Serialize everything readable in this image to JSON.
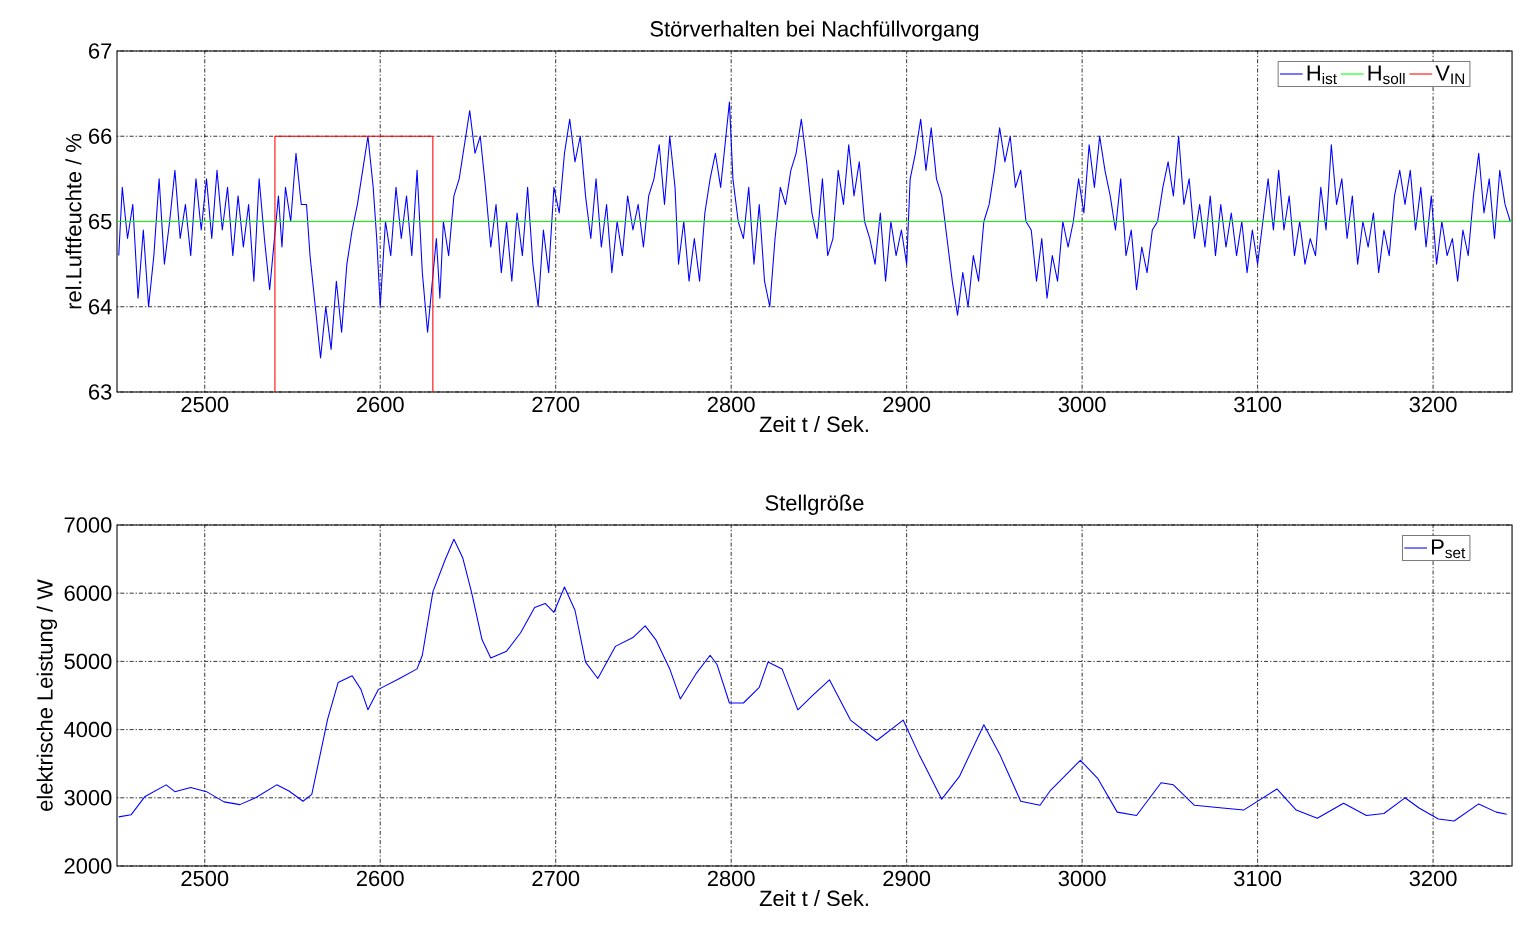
{
  "chart_data": [
    {
      "type": "line",
      "title": "Störverhalten bei Nachfüllvorgang",
      "xlabel": "Zeit t / Sek.",
      "ylabel": "rel.Luftfeuchte / %",
      "xlim": [
        2450,
        3245
      ],
      "ylim": [
        63,
        67
      ],
      "xticks": [
        2500,
        2600,
        2700,
        2800,
        2900,
        3000,
        3100,
        3200
      ],
      "yticks": [
        63,
        64,
        65,
        66,
        67
      ],
      "grid": true,
      "legend": "top right",
      "line_style": "solid",
      "series": [
        {
          "name": "H$_{ist}$",
          "color": "#0000ff",
          "x": [
            2451,
            2453,
            2456,
            2459,
            2462,
            2465,
            2468,
            2471,
            2474,
            2477,
            2480,
            2483,
            2486,
            2489,
            2492,
            2495,
            2498,
            2501,
            2504,
            2507,
            2510,
            2513,
            2516,
            2519,
            2522,
            2525,
            2528,
            2531,
            2534,
            2537,
            2542,
            2544,
            2546,
            2549,
            2552,
            2555,
            2558,
            2560,
            2563,
            2566,
            2569,
            2572,
            2575,
            2578,
            2581,
            2584,
            2587,
            2590,
            2593,
            2596,
            2598,
            2600,
            2603,
            2606,
            2609,
            2612,
            2615,
            2618,
            2621,
            2624,
            2627,
            2632,
            2634,
            2636,
            2639,
            2642,
            2645,
            2648,
            2651,
            2654,
            2657,
            2660,
            2663,
            2666,
            2669,
            2672,
            2675,
            2678,
            2681,
            2684,
            2687,
            2690,
            2693,
            2696,
            2699,
            2702,
            2705,
            2708,
            2711,
            2714,
            2717,
            2720,
            2723,
            2726,
            2729,
            2732,
            2735,
            2738,
            2741,
            2744,
            2747,
            2750,
            2753,
            2756,
            2759,
            2762,
            2765,
            2768,
            2770,
            2773,
            2776,
            2779,
            2782,
            2785,
            2788,
            2791,
            2794,
            2797,
            2799,
            2801,
            2804,
            2807,
            2810,
            2813,
            2816,
            2819,
            2822,
            2825,
            2828,
            2831,
            2834,
            2837,
            2840,
            2843,
            2846,
            2849,
            2852,
            2855,
            2858,
            2861,
            2864,
            2867,
            2870,
            2873,
            2876,
            2879,
            2882,
            2885,
            2888,
            2891,
            2894,
            2897,
            2900,
            2902,
            2905,
            2908,
            2911,
            2914,
            2917,
            2920,
            2923,
            2926,
            2929,
            2932,
            2935,
            2938,
            2941,
            2944,
            2947,
            2950,
            2953,
            2956,
            2959,
            2962,
            2965,
            2968,
            2971,
            2974,
            2977,
            2980,
            2983,
            2986,
            2989,
            2992,
            2995,
            2998,
            3001,
            3004,
            3007,
            3010,
            3013,
            3016,
            3019,
            3022,
            3025,
            3028,
            3031,
            3034,
            3037,
            3040,
            3043,
            3046,
            3049,
            3052,
            3055,
            3058,
            3061,
            3064,
            3067,
            3070,
            3073,
            3076,
            3079,
            3082,
            3085,
            3088,
            3091,
            3094,
            3097,
            3100,
            3103,
            3106,
            3109,
            3112,
            3115,
            3118,
            3121,
            3124,
            3127,
            3130,
            3133,
            3136,
            3139,
            3142,
            3145,
            3148,
            3151,
            3154,
            3157,
            3160,
            3163,
            3166,
            3169,
            3172,
            3175,
            3178,
            3181,
            3184,
            3187,
            3190,
            3193,
            3196,
            3199,
            3202,
            3205,
            3208,
            3211,
            3214,
            3217,
            3220,
            3223,
            3226,
            3229,
            3232,
            3235,
            3238,
            3241,
            3244
          ],
          "values": [
            64.6,
            65.4,
            64.8,
            65.2,
            64.1,
            64.9,
            64.0,
            64.6,
            65.5,
            64.5,
            65.0,
            65.6,
            64.8,
            65.2,
            64.6,
            65.5,
            64.9,
            65.5,
            64.8,
            65.6,
            64.9,
            65.4,
            64.6,
            65.3,
            64.7,
            65.2,
            64.3,
            65.5,
            64.8,
            64.2,
            65.3,
            64.7,
            65.4,
            65.0,
            65.8,
            65.2,
            65.2,
            64.6,
            64.0,
            63.4,
            64.0,
            63.5,
            64.3,
            63.7,
            64.5,
            64.9,
            65.2,
            65.6,
            66.0,
            65.4,
            64.8,
            64.0,
            65.0,
            64.6,
            65.4,
            64.8,
            65.3,
            64.6,
            65.6,
            64.4,
            63.7,
            64.8,
            64.1,
            65.0,
            64.6,
            65.3,
            65.5,
            65.9,
            66.3,
            65.8,
            66.0,
            65.4,
            64.7,
            65.2,
            64.4,
            65.0,
            64.3,
            65.1,
            64.6,
            65.4,
            64.5,
            64.0,
            64.9,
            64.4,
            65.4,
            65.1,
            65.8,
            66.2,
            65.7,
            66.0,
            65.3,
            64.8,
            65.5,
            64.7,
            65.2,
            64.4,
            65.0,
            64.6,
            65.3,
            64.9,
            65.2,
            64.7,
            65.3,
            65.5,
            65.9,
            65.2,
            66.0,
            65.4,
            64.5,
            65.0,
            64.3,
            64.8,
            64.3,
            65.1,
            65.5,
            65.8,
            65.4,
            66.0,
            66.4,
            65.5,
            65.0,
            64.8,
            65.4,
            64.5,
            65.2,
            64.3,
            64.0,
            64.8,
            65.4,
            65.2,
            65.6,
            65.8,
            66.2,
            65.7,
            65.1,
            64.8,
            65.5,
            64.6,
            64.8,
            65.6,
            65.2,
            65.9,
            65.3,
            65.7,
            65.0,
            64.8,
            64.5,
            65.1,
            64.3,
            65.0,
            64.6,
            64.9,
            64.5,
            65.5,
            65.8,
            66.2,
            65.6,
            66.1,
            65.5,
            65.3,
            64.8,
            64.3,
            63.9,
            64.4,
            64.0,
            64.6,
            64.3,
            65.0,
            65.2,
            65.6,
            66.1,
            65.7,
            66.0,
            65.4,
            65.6,
            65.0,
            64.9,
            64.3,
            64.8,
            64.1,
            64.6,
            64.3,
            65.0,
            64.7,
            65.0,
            65.5,
            65.1,
            65.9,
            65.4,
            66.0,
            65.6,
            65.3,
            64.9,
            65.5,
            64.6,
            64.9,
            64.2,
            64.7,
            64.4,
            64.9,
            65.0,
            65.4,
            65.7,
            65.3,
            66.0,
            65.2,
            65.5,
            64.8,
            65.2,
            64.7,
            65.3,
            64.6,
            65.2,
            64.7,
            65.1,
            64.6,
            65.0,
            64.4,
            64.9,
            64.5,
            65.0,
            65.5,
            64.9,
            65.6,
            64.9,
            65.3,
            64.6,
            65.0,
            64.5,
            64.8,
            64.6,
            65.4,
            64.9,
            65.9,
            65.2,
            65.5,
            64.8,
            65.3,
            64.5,
            65.0,
            64.7,
            65.1,
            64.4,
            64.9,
            64.6,
            65.3,
            65.6,
            65.2,
            65.6,
            64.9,
            65.4,
            64.7,
            65.3,
            64.5,
            65.0,
            64.6,
            64.8,
            64.3,
            64.9,
            64.6,
            65.3,
            65.8,
            65.1,
            65.5,
            64.8,
            65.6,
            65.2,
            65.0
          ]
        },
        {
          "name": "H$_{soll}$",
          "color": "#00ff00",
          "x": [
            2450,
            3245
          ],
          "values": [
            65,
            65
          ]
        },
        {
          "name": "V$_{IN}$",
          "color": "#ff0000",
          "x": [
            2540,
            2540,
            2630,
            2630
          ],
          "values": [
            63,
            66,
            66,
            63
          ]
        }
      ]
    },
    {
      "type": "line",
      "title": "Stellgröße",
      "xlabel": "Zeit t / Sek.",
      "ylabel": "elektrische Leistung / W",
      "xlim": [
        2450,
        3245
      ],
      "ylim": [
        2000,
        7000
      ],
      "xticks": [
        2500,
        2600,
        2700,
        2800,
        2900,
        3000,
        3100,
        3200
      ],
      "yticks": [
        2000,
        3000,
        4000,
        5000,
        6000,
        7000
      ],
      "grid": true,
      "legend": "top right",
      "line_style": "solid",
      "series": [
        {
          "name": "P$_{set}$",
          "color": "#0000ff",
          "x": [
            2451,
            2458,
            2466,
            2478,
            2483,
            2492,
            2501,
            2511,
            2520,
            2529,
            2541,
            2548,
            2556,
            2561,
            2570,
            2576,
            2584,
            2589,
            2593,
            2599,
            2611,
            2621,
            2624,
            2630,
            2637,
            2642,
            2647,
            2652,
            2658,
            2663,
            2672,
            2680,
            2688,
            2694,
            2699,
            2705,
            2711,
            2717,
            2724,
            2734,
            2744,
            2751,
            2757,
            2765,
            2771,
            2780,
            2788,
            2792,
            2799,
            2807,
            2816,
            2821,
            2829,
            2838,
            2846,
            2856,
            2868,
            2883,
            2898,
            2907,
            2920,
            2930,
            2944,
            2953,
            2965,
            2976,
            2982,
            2999,
            3009,
            3020,
            3031,
            3045,
            3052,
            3064,
            3080,
            3092,
            3111,
            3122,
            3134,
            3149,
            3162,
            3172,
            3184,
            3192,
            3203,
            3212,
            3226,
            3236,
            3242
          ],
          "values": [
            2720,
            2750,
            3020,
            3190,
            3090,
            3150,
            3090,
            2940,
            2900,
            3000,
            3190,
            3100,
            2950,
            3050,
            4150,
            4690,
            4790,
            4590,
            4290,
            4590,
            4750,
            4890,
            5090,
            6020,
            6490,
            6790,
            6520,
            6020,
            5320,
            5050,
            5150,
            5420,
            5790,
            5850,
            5720,
            6090,
            5750,
            4990,
            4750,
            5220,
            5350,
            5520,
            5320,
            4890,
            4450,
            4820,
            5090,
            4950,
            4390,
            4390,
            4620,
            4990,
            4890,
            4290,
            4490,
            4730,
            4140,
            3840,
            4140,
            3640,
            2980,
            3310,
            4070,
            3640,
            2950,
            2890,
            3110,
            3550,
            3280,
            2790,
            2740,
            3220,
            3190,
            2890,
            2850,
            2820,
            3130,
            2820,
            2700,
            2920,
            2740,
            2770,
            3000,
            2850,
            2690,
            2660,
            2910,
            2790,
            2760
          ]
        }
      ]
    }
  ]
}
